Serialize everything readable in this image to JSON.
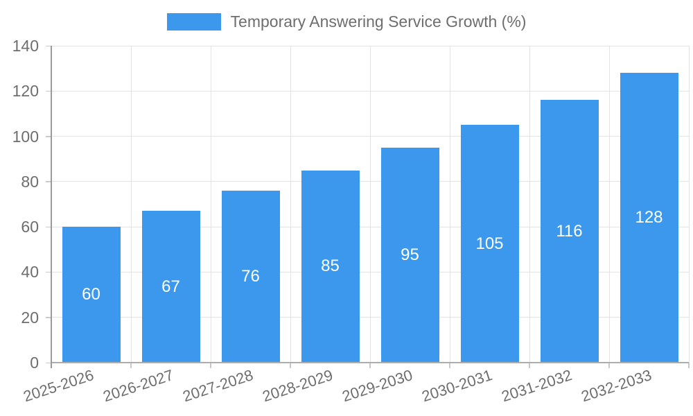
{
  "chart_data": {
    "type": "bar",
    "title": "Temporary Answering Service Growth (%)",
    "legend": {
      "label": "Temporary Answering Service Growth (%)",
      "position": "top"
    },
    "categories": [
      "2025-2026",
      "2026-2027",
      "2027-2028",
      "2028-2029",
      "2029-2030",
      "2030-2031",
      "2031-2032",
      "2032-2033"
    ],
    "series": [
      {
        "name": "Temporary Answering Service Growth (%)",
        "values": [
          60,
          67,
          76,
          85,
          95,
          105,
          116,
          128
        ]
      }
    ],
    "bar_labels": [
      "60",
      "67",
      "76",
      "85",
      "95",
      "105",
      "116",
      "128"
    ],
    "xlabel": "",
    "ylabel": "",
    "ylim": [
      0,
      140
    ],
    "yticks": [
      0,
      20,
      40,
      60,
      80,
      100,
      120,
      140
    ],
    "grid": true,
    "colors": {
      "bar": "#3B98EC",
      "bar_label": "#FFFFFF",
      "axis_text": "#6E6E6E",
      "grid": "#E3E3E3",
      "axis_line": "#9A9A9A",
      "baseline": "#ADADAD",
      "tick": "#C9C9C9"
    }
  }
}
